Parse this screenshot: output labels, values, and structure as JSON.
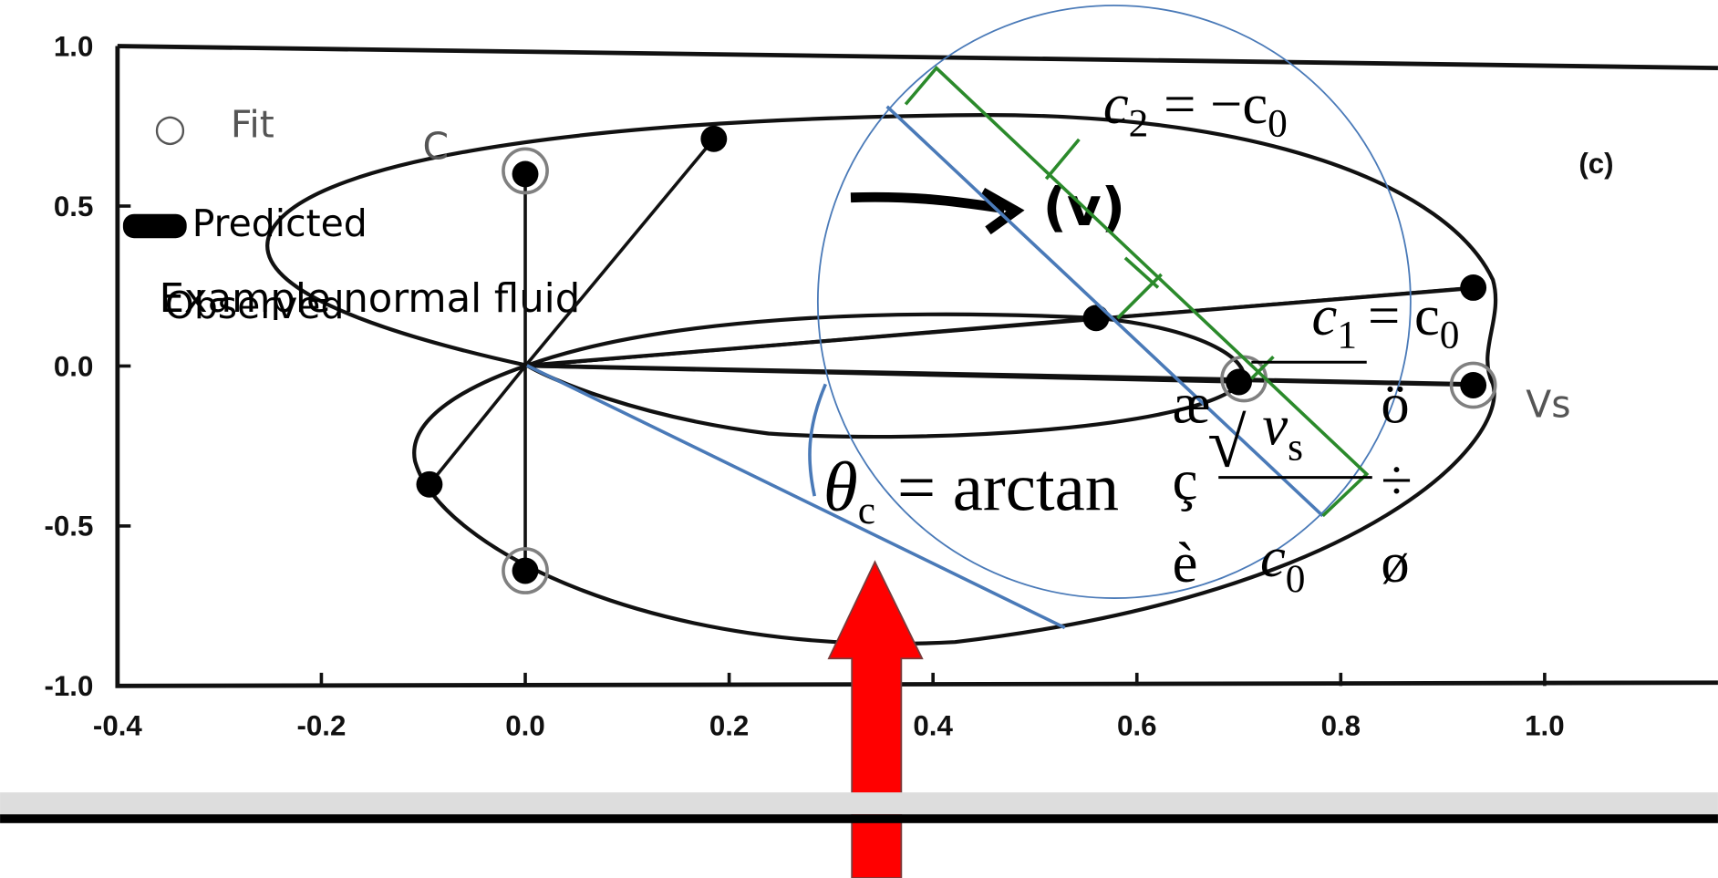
{
  "chart_data": {
    "type": "scatter",
    "panel_label": "(c)",
    "xlim": [
      -0.4,
      1.17
    ],
    "ylim": [
      -1,
      1
    ],
    "xticks": [
      -0.4,
      -0.2,
      {
        "value": 0,
        "label": "0.0"
      },
      0.2,
      0.4,
      0.6,
      0.8,
      {
        "value": 1,
        "label": "1.0"
      }
    ],
    "yticks": [
      {
        "value": 1,
        "label": "1.0"
      },
      0.5,
      {
        "value": 0,
        "label": "0.0"
      },
      -0.5,
      {
        "value": -1,
        "label": "-1.0"
      }
    ],
    "series": [
      {
        "name": "Predicted",
        "color": "#000000",
        "x": [
          0,
          0.185,
          -0.094,
          0,
          0.56,
          0.7,
          0.93,
          0.93
        ],
        "y": [
          0.6,
          0.71,
          -0.37,
          -0.64,
          0.15,
          -0.05,
          0.245,
          -0.06
        ]
      },
      {
        "name": "Fit",
        "color": "#808080",
        "x": [
          0,
          0,
          0.705,
          0.93
        ],
        "y": [
          0.61,
          -0.64,
          -0.04,
          -0.06
        ]
      }
    ],
    "handwritten": {
      "observed": "Observed",
      "c": "C",
      "vs": "Vs",
      "v": "(v)"
    }
  },
  "overlay": {
    "caption": "Example normal fluid",
    "eq_c2": {
      "c": "c",
      "sub": "2",
      "rhs": "= −c",
      "rhs_sub": "0"
    },
    "eq_c1": {
      "c": "c",
      "sub": "1",
      "rhs": "= c",
      "rhs_sub": "0"
    },
    "eq_theta": {
      "theta": "θ",
      "sub": "c",
      "rhs": "= arctan",
      "num": "v",
      "num_sub": "s",
      "den": "c",
      "den_sub": "0",
      "root": "√"
    },
    "brackets": [
      "æ",
      "ç",
      "è",
      "ö",
      "÷",
      "ø"
    ]
  }
}
